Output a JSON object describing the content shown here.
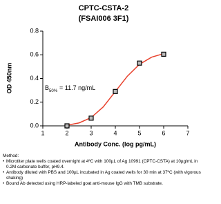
{
  "chart_data": {
    "type": "scatter-fit",
    "title": [
      "CPTC-CSTA-2",
      "(FSAI006 3F1)"
    ],
    "x_label": "Antibody Conc. (log pg/mL)",
    "y_label": "OD 450nm",
    "annotation": {
      "main": "B",
      "subscript": "50%",
      "rest": "= 11.7 ng/mL"
    },
    "xlim": [
      1,
      7
    ],
    "xticks": [
      1,
      2,
      3,
      4,
      5,
      6,
      7
    ],
    "ylim": [
      0,
      0.8
    ],
    "yticks": [
      {
        "value": 0,
        "label": "0.0"
      },
      0.2,
      0.4,
      0.6,
      0.8
    ],
    "series": [
      {
        "x": [
          2,
          3,
          4,
          5,
          6
        ],
        "values": [
          0.0,
          0.065,
          0.29,
          0.53,
          0.605
        ],
        "color": "#000000"
      },
      {
        "x": [
          2,
          2.5,
          3,
          3.5,
          4,
          4.5,
          5,
          5.5,
          6
        ],
        "values": [
          0.005,
          0.025,
          0.07,
          0.16,
          0.29,
          0.42,
          0.52,
          0.58,
          0.61
        ],
        "color": "#e8412c"
      }
    ]
  },
  "method": {
    "title": "Method:",
    "items": [
      "Microtiter plate wells coated overnight at 4ºC  with 100µL of Ag 10991 (CPTC-CSTA) at 10µg/mL in 0.2M carbonate buffer, pH9.4.",
      "Antibody diluted with PBS and 100µL incubated in Ag coated wells for 30 min at 37ºC (with vigorous shaking)",
      "Bound Ab detected using HRP-labeled goat anti-mouse IgG with TMB substrate."
    ]
  }
}
